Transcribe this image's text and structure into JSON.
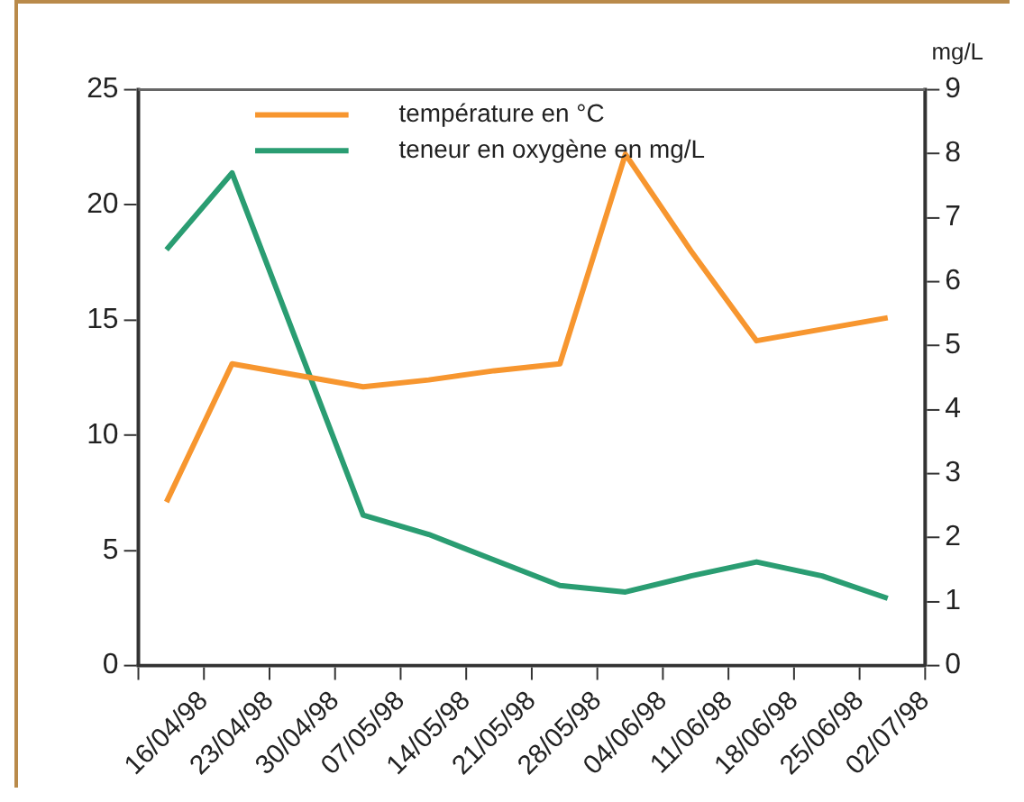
{
  "chart_data": {
    "type": "line",
    "y2label": "mg/L",
    "legend": "top left",
    "grid": false,
    "xlim": [
      "1998-04-09",
      "1998-07-02"
    ],
    "xticks": [
      {
        "value": "1998-04-09",
        "label": null
      },
      {
        "value": "1998-04-16",
        "label": "16/04/98"
      },
      {
        "value": "1998-04-23",
        "label": "23/04/98"
      },
      {
        "value": "1998-04-30",
        "label": "30/04/98"
      },
      {
        "value": "1998-05-07",
        "label": "07/05/98"
      },
      {
        "value": "1998-05-14",
        "label": "14/05/98"
      },
      {
        "value": "1998-05-21",
        "label": "21/05/98"
      },
      {
        "value": "1998-05-28",
        "label": "28/05/98"
      },
      {
        "value": "1998-06-04",
        "label": "04/06/98"
      },
      {
        "value": "1998-06-11",
        "label": "11/06/98"
      },
      {
        "value": "1998-06-18",
        "label": "18/06/98"
      },
      {
        "value": "1998-06-25",
        "label": "25/06/98"
      },
      {
        "value": "1998-07-02",
        "label": "02/07/98"
      }
    ],
    "ylim": [
      0,
      25
    ],
    "yticks": [
      0,
      5,
      10,
      15,
      20,
      25
    ],
    "y2lim": [
      0,
      9
    ],
    "y2ticks": [
      0,
      1,
      2,
      3,
      4,
      5,
      6,
      7,
      8,
      9
    ],
    "x": [
      "1998-04-12",
      "1998-04-19",
      "1998-05-03",
      "1998-05-10",
      "1998-05-17",
      "1998-05-24",
      "1998-05-31",
      "1998-06-07",
      "1998-06-14",
      "1998-06-21",
      "1998-06-28"
    ],
    "series": [
      {
        "name": "température en °C",
        "color": "#f7962f",
        "values": [
          7.1,
          13.1,
          12.1,
          12.4,
          12.8,
          13.1,
          22.2,
          18.0,
          14.1,
          14.6,
          15.1
        ]
      },
      {
        "name": "teneur en oxygène en mg/L",
        "color": "#2a9d72",
        "axis": "y2",
        "values": [
          6.5,
          7.7,
          2.35,
          2.05,
          1.65,
          1.25,
          1.15,
          1.4,
          1.62,
          1.4,
          1.05
        ]
      }
    ]
  }
}
